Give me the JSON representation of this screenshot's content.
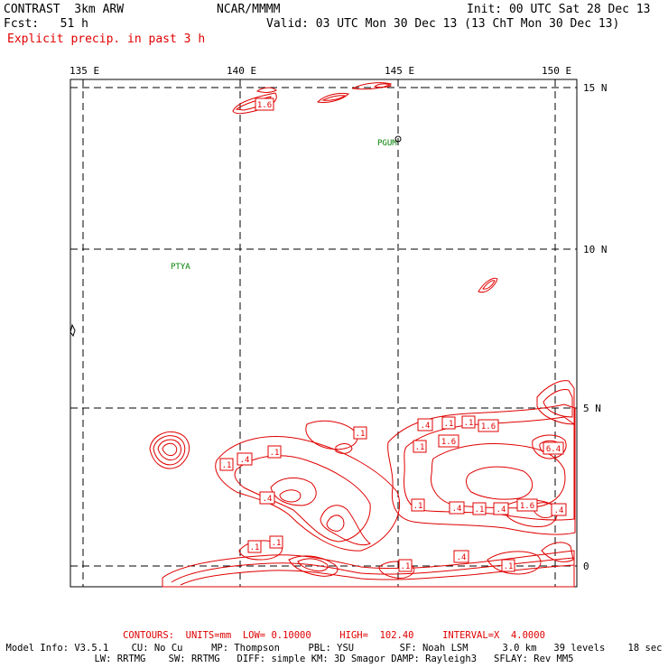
{
  "header": {
    "model_title": "CONTRAST  3km ARW",
    "org": "NCAR/MMMM",
    "init": "Init: 00 UTC Sat 28 Dec 13",
    "fcst": "Fcst:   51 h",
    "valid": "Valid: 03 UTC Mon 30 Dec 13 (13 ChT Mon 30 Dec 13)",
    "field": "Explicit precip. in past 3 h"
  },
  "map": {
    "lon_labels": [
      "135 E",
      "140 E",
      "145 E",
      "150 E"
    ],
    "lat_labels": [
      "15 N",
      "10 N",
      "5 N",
      "0"
    ],
    "stations": [
      "PGUM",
      "PTYA"
    ],
    "contour_labels": [
      {
        "text": "1.6"
      },
      {
        "text": ".1"
      },
      {
        "text": ".1"
      },
      {
        "text": ".4"
      },
      {
        "text": ".1"
      },
      {
        "text": ".4"
      },
      {
        "text": ".4"
      },
      {
        "text": ".1"
      },
      {
        "text": ".1"
      },
      {
        "text": "1.6"
      },
      {
        "text": ".1"
      },
      {
        "text": "1.6"
      },
      {
        "text": "6.4"
      },
      {
        "text": ".1"
      },
      {
        "text": ".4"
      },
      {
        "text": ".1"
      },
      {
        "text": ".4"
      },
      {
        "text": "1.6"
      },
      {
        "text": ".4"
      },
      {
        "text": ".1"
      },
      {
        "text": ".1"
      },
      {
        "text": ".4"
      },
      {
        "text": ".1"
      },
      {
        "text": ".1"
      }
    ],
    "contour_color": "#e00000",
    "station_color": "#008000"
  },
  "footer": {
    "contours": "CONTOURS:  UNITS=mm  LOW= 0.10000     HIGH=  102.40     INTERVAL=X  4.0000",
    "model_info": "Model Info: V3.5.1    CU: No Cu     MP: Thompson     PBL: YSU        SF: Noah LSM      3.0 km   39 levels    18 sec",
    "physics": "LW: RRTMG    SW: RRTMG   DIFF: simple KM: 3D Smagor DAMP: Rayleigh3   SFLAY: Rev MM5"
  }
}
